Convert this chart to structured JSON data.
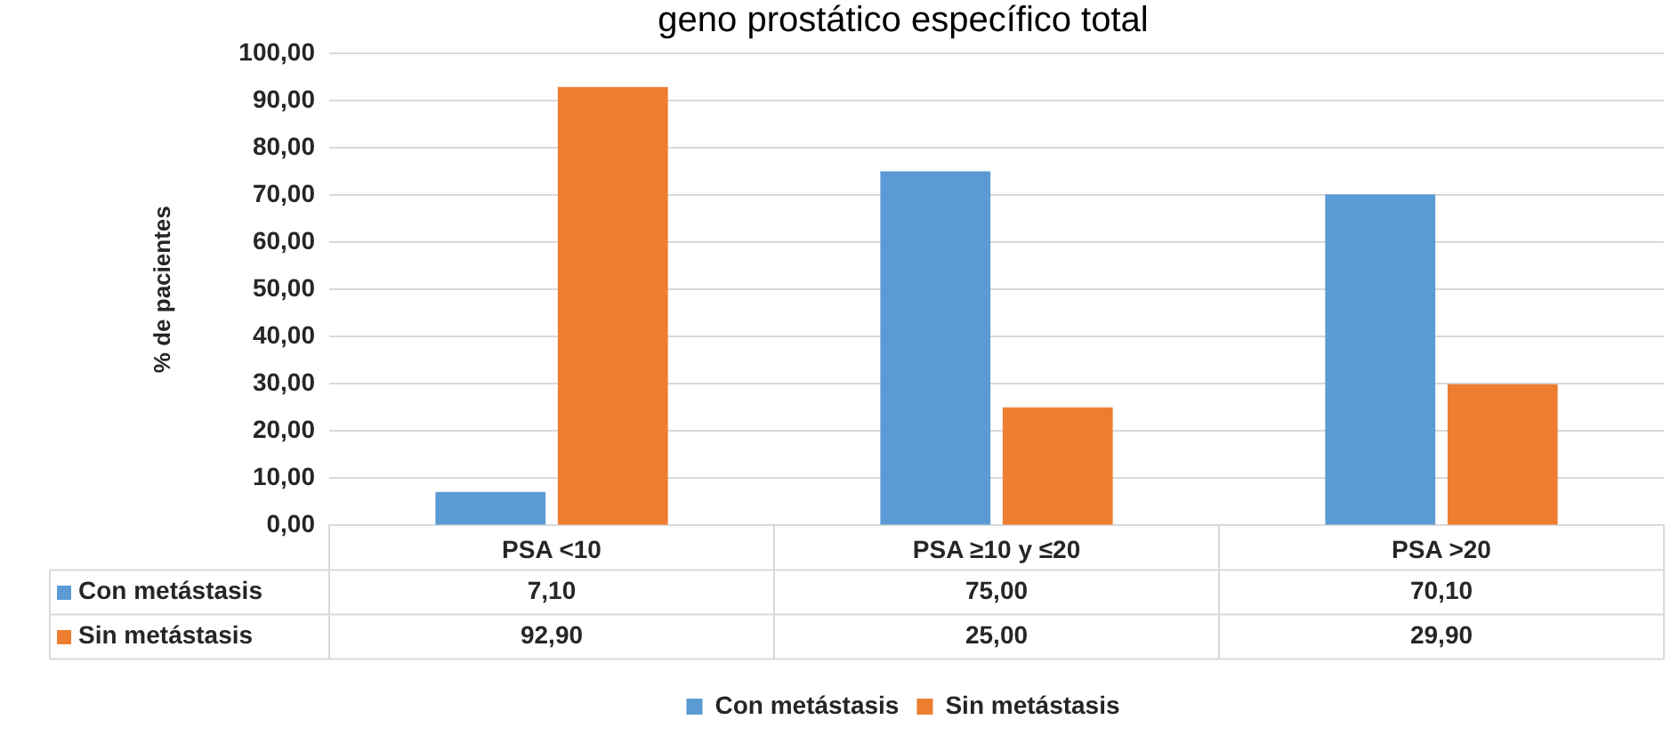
{
  "chart_data": {
    "type": "bar",
    "title": "geno prostático específico total",
    "ylabel": "% de pacientes",
    "categories": [
      "PSA <10",
      "PSA ≥10 y ≤20",
      "PSA >20"
    ],
    "series": [
      {
        "name": "Con metástasis",
        "color": "#5b9bd5",
        "values": [
          7.1,
          75.0,
          70.1
        ],
        "value_labels": [
          "7,10",
          "75,00",
          "70,10"
        ]
      },
      {
        "name": "Sin metástasis",
        "color": "#ed7d31",
        "values": [
          92.9,
          25.0,
          29.9
        ],
        "value_labels": [
          "92,90",
          "25,00",
          "29,90"
        ]
      }
    ],
    "ylim": [
      0,
      100
    ],
    "yticks": [
      {
        "value": 0,
        "label": "0,00"
      },
      {
        "value": 10,
        "label": "10,00"
      },
      {
        "value": 20,
        "label": "20,00"
      },
      {
        "value": 30,
        "label": "30,00"
      },
      {
        "value": 40,
        "label": "40,00"
      },
      {
        "value": 50,
        "label": "50,00"
      },
      {
        "value": 60,
        "label": "60,00"
      },
      {
        "value": 70,
        "label": "70,00"
      },
      {
        "value": 80,
        "label": "80,00"
      },
      {
        "value": 90,
        "label": "90,00"
      },
      {
        "value": 100,
        "label": "100,00"
      }
    ],
    "grid": "y",
    "legend": "bottom"
  }
}
